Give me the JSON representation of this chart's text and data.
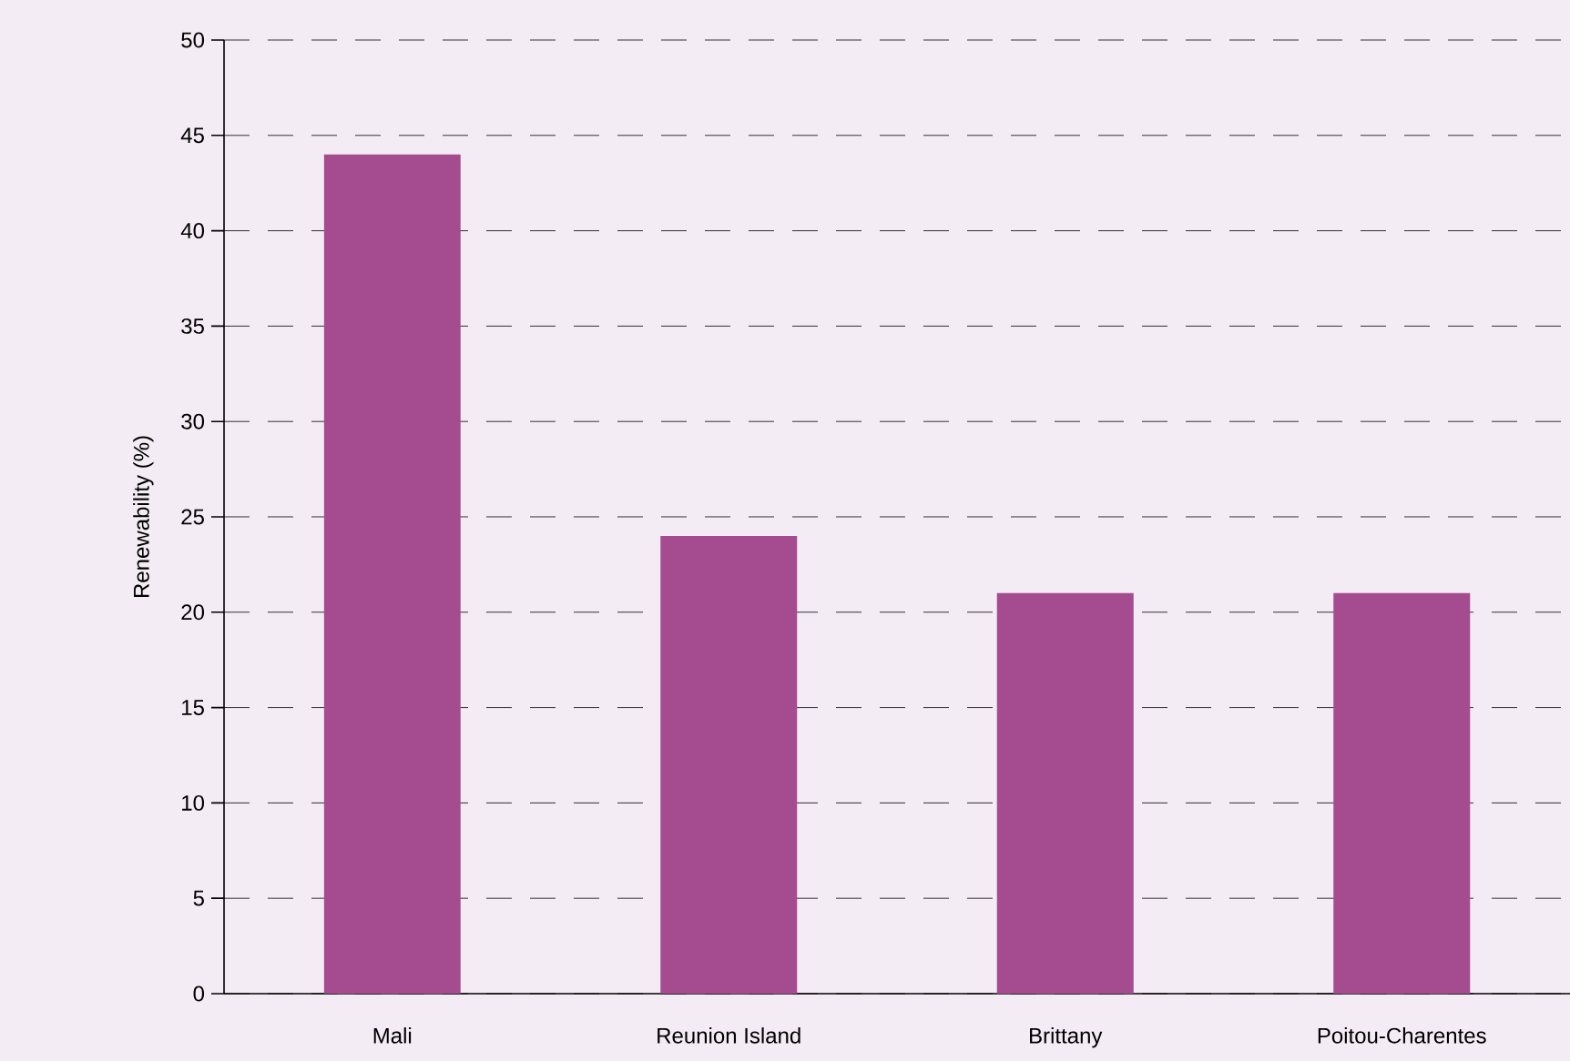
{
  "chart_data": {
    "type": "bar",
    "ylabel": "Renewability (%)",
    "categories": [
      "Mali",
      "Reunion Island",
      "Brittany",
      "Poitou-Charentes"
    ],
    "values": [
      44,
      24,
      21,
      21
    ],
    "color": "#a54c91",
    "ylim": [
      0,
      50
    ],
    "yticks": [
      0,
      5,
      10,
      15,
      20,
      25,
      30,
      35,
      40,
      45,
      50
    ],
    "grid": "y"
  }
}
